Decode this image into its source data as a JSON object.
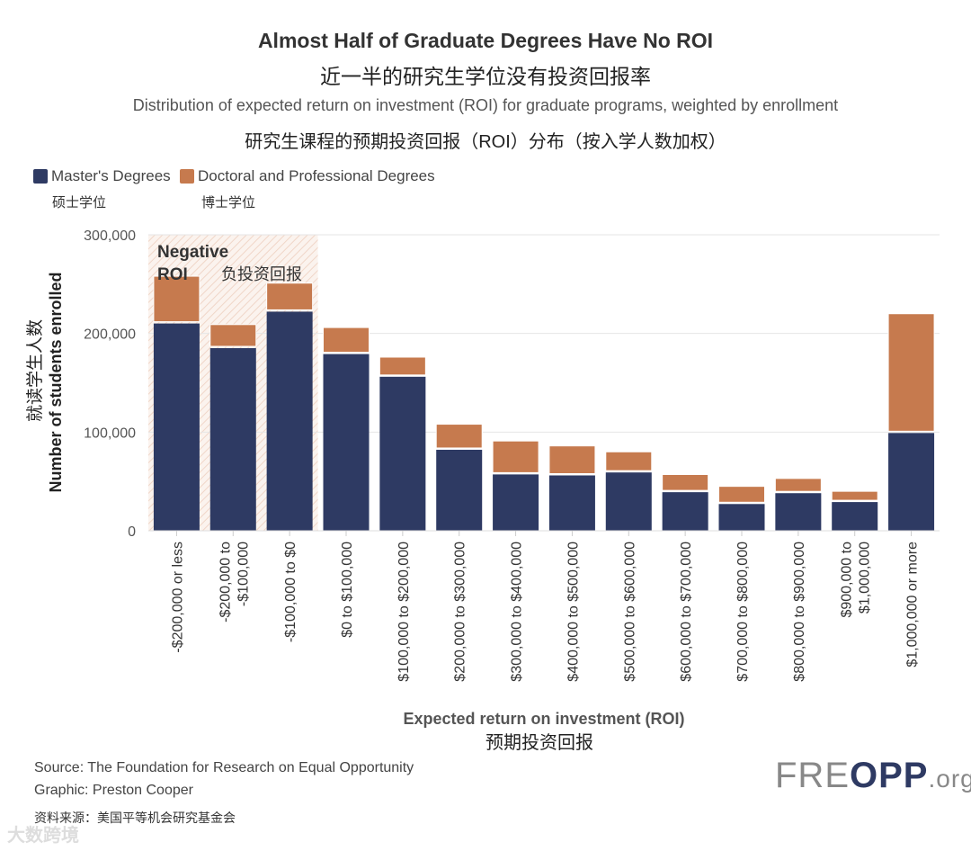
{
  "title": "Almost Half of Graduate Degrees Have No ROI",
  "title_cn": "近一半的研究生学位没有投资回报率",
  "subtitle": "Distribution of expected return on investment (ROI) for graduate programs, weighted by enrollment",
  "subtitle_cn": "研究生课程的预期投资回报（ROI）分布（按入学人数加权）",
  "legend": [
    {
      "label": "Master's Degrees",
      "label_cn": "硕士学位",
      "color": "#2e3a63"
    },
    {
      "label": "Doctoral and Professional Degrees",
      "label_cn": "博士学位",
      "color": "#c67a4e"
    }
  ],
  "annotation": {
    "label": "Negative ROI",
    "label_line1": "Negative",
    "label_line2": "ROI",
    "label_cn": "负投资回报"
  },
  "source": "Source: The Foundation for Research on Equal Opportunity",
  "graphic": "Graphic: Preston Cooper",
  "source_cn": "资料来源：美国平等机会研究基金会",
  "logo": {
    "main": "FRE",
    "bold": "OPP",
    "suffix": ".org"
  },
  "watermark": "大数跨境",
  "chart_data": {
    "type": "bar",
    "stacked": true,
    "xlabel": "Expected return on investment (ROI)",
    "xlabel_cn": "预期投资回报",
    "ylabel": "Number of students enrolled",
    "ylabel_cn": "就读学生人数",
    "ylim": [
      0,
      300000
    ],
    "yticks": [
      "0",
      "100,000",
      "200,000",
      "300,000"
    ],
    "ytick_values": [
      0,
      100000,
      200000,
      300000
    ],
    "grid": true,
    "legend_position": "top-left",
    "highlight_categories": [
      0,
      1,
      2
    ],
    "categories": [
      "-$200,000 or less",
      "-$200,000 to -$100,000",
      "-$100,000 to $0",
      "$0 to $100,000",
      "$100,000 to $200,000",
      "$200,000 to $300,000",
      "$300,000 to $400,000",
      "$400,000 to $500,000",
      "$500,000 to $600,000",
      "$600,000 to $700,000",
      "$700,000 to $800,000",
      "$800,000 to $900,000",
      "$900,000 to $1,000,000",
      "$1,000,000 or more"
    ],
    "category_lines": [
      [
        "-$200,000 or less"
      ],
      [
        "-$200,000 to",
        "-$100,000"
      ],
      [
        "-$100,000 to $0"
      ],
      [
        "$0 to $100,000"
      ],
      [
        "$100,000 to $200,000"
      ],
      [
        "$200,000 to $300,000"
      ],
      [
        "$300,000 to $400,000"
      ],
      [
        "$400,000 to $500,000"
      ],
      [
        "$500,000 to $600,000"
      ],
      [
        "$600,000 to $700,000"
      ],
      [
        "$700,000 to $800,000"
      ],
      [
        "$800,000 to $900,000"
      ],
      [
        "$900,000 to",
        "$1,000,000"
      ],
      [
        "$1,000,000 or more"
      ]
    ],
    "series": [
      {
        "name": "Master's Degrees",
        "values": [
          211000,
          186000,
          223000,
          180000,
          157000,
          83000,
          58000,
          57000,
          60000,
          40000,
          28000,
          39000,
          30000,
          100000
        ]
      },
      {
        "name": "Doctoral and Professional Degrees",
        "values": [
          47000,
          23000,
          28000,
          26000,
          19000,
          25000,
          33000,
          29000,
          20000,
          17000,
          17000,
          14000,
          10000,
          120000
        ]
      }
    ]
  }
}
